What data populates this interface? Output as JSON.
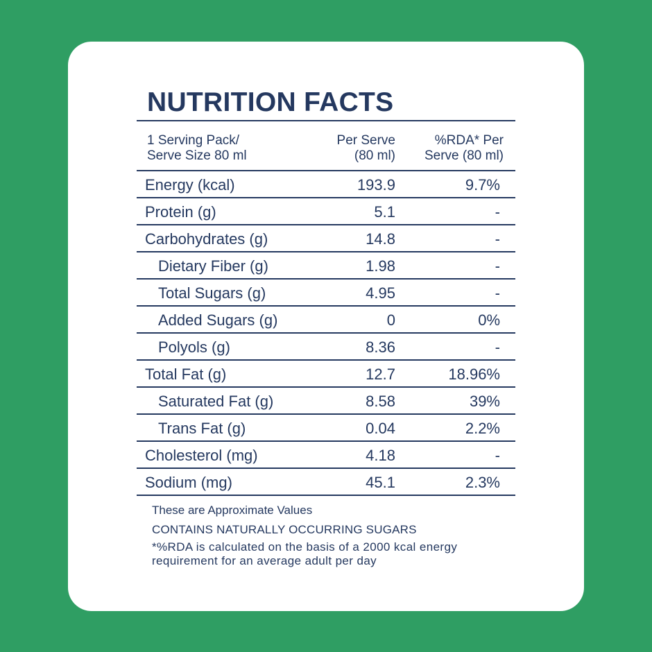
{
  "title": "NUTRITION FACTS",
  "header": {
    "serving": [
      "1 Serving Pack/",
      "Serve Size 80 ml"
    ],
    "per_serve": [
      "Per Serve",
      "(80 ml)"
    ],
    "rda": [
      "%RDA* Per",
      "Serve (80 ml)"
    ]
  },
  "rows": [
    {
      "name": "Energy (kcal)",
      "value": "193.9",
      "rda": "9.7%",
      "indent": false
    },
    {
      "name": "Protein (g)",
      "value": "5.1",
      "rda": "-",
      "indent": false
    },
    {
      "name": "Carbohydrates (g)",
      "value": "14.8",
      "rda": "-",
      "indent": false
    },
    {
      "name": "Dietary Fiber (g)",
      "value": "1.98",
      "rda": "-",
      "indent": true
    },
    {
      "name": "Total Sugars (g)",
      "value": "4.95",
      "rda": "-",
      "indent": true
    },
    {
      "name": "Added Sugars (g)",
      "value": "0",
      "rda": "0%",
      "indent": true
    },
    {
      "name": "Polyols (g)",
      "value": "8.36",
      "rda": "-",
      "indent": true
    },
    {
      "name": "Total Fat (g)",
      "value": "12.7",
      "rda": "18.96%",
      "indent": false
    },
    {
      "name": "Saturated Fat (g)",
      "value": "8.58",
      "rda": "39%",
      "indent": true
    },
    {
      "name": "Trans Fat (g)",
      "value": "0.04",
      "rda": "2.2%",
      "indent": true
    },
    {
      "name": "Cholesterol (mg)",
      "value": "4.18",
      "rda": "-",
      "indent": false
    },
    {
      "name": "Sodium (mg)",
      "value": "45.1",
      "rda": "2.3%",
      "indent": false
    }
  ],
  "notes": {
    "approx": "These are Approximate Values",
    "sugars": "CONTAINS NATURALLY OCCURRING SUGARS",
    "rda_line1": "*%RDA is calculated on the basis of a 2000 kcal energy",
    "rda_line2": "requirement for an average adult per day"
  },
  "colors": {
    "background": "#2f9e63",
    "card": "#ffffff",
    "text": "#24385f"
  }
}
